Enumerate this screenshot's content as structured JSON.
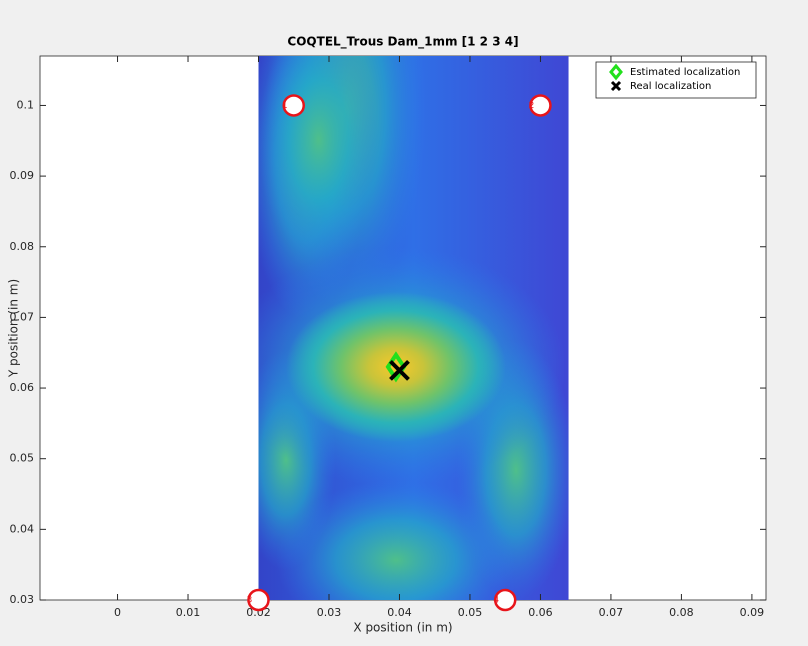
{
  "chart_data": {
    "type": "scatter",
    "title": "COQTEL_Trous Dam_1mm [1  2  3  4]",
    "xlabel": "X position (in m)",
    "ylabel": "Y position (in m)",
    "xlim": [
      -0.011,
      0.092
    ],
    "ylim": [
      0.03,
      0.107
    ],
    "xticks": [
      0,
      0.01,
      0.02,
      0.03,
      0.04,
      0.05,
      0.06,
      0.07,
      0.08,
      0.09
    ],
    "yticks": [
      0.03,
      0.04,
      0.05,
      0.06,
      0.07,
      0.08,
      0.09,
      0.1
    ],
    "map_extent_x": [
      0.02,
      0.064
    ],
    "sensors": {
      "x": [
        0.025,
        0.06,
        0.02,
        0.055
      ],
      "y": [
        0.1,
        0.1,
        0.03,
        0.03
      ],
      "labels": [
        "1",
        "2",
        "3",
        "4"
      ],
      "color": "#e8141a"
    },
    "series": [
      {
        "name": "Estimated localization",
        "color": "#22e01c",
        "marker": "diamond",
        "x": [
          0.0395
        ],
        "values": [
          0.063
        ]
      },
      {
        "name": "Real localization",
        "color": "#000000",
        "marker": "x",
        "x": [
          0.04
        ],
        "values": [
          0.0625
        ]
      }
    ],
    "legend": "top-right"
  }
}
